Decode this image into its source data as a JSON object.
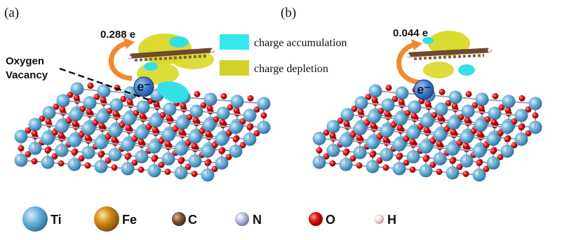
{
  "panels": [
    {
      "label": "(a)",
      "charge_transfer": "0.288 e",
      "electron": "e⁻"
    },
    {
      "label": "(b)",
      "charge_transfer": "0.044 e",
      "electron": "e⁻"
    }
  ],
  "annotation": {
    "line1": "Oxygen",
    "line2": "Vacancy"
  },
  "charge_legend": [
    {
      "label": "charge accumulation"
    },
    {
      "label": "charge depletion"
    }
  ],
  "atom_legend": [
    {
      "symbol": "Ti"
    },
    {
      "symbol": "Fe"
    },
    {
      "symbol": "C"
    },
    {
      "symbol": "N"
    },
    {
      "symbol": "O"
    },
    {
      "symbol": "H"
    }
  ]
}
